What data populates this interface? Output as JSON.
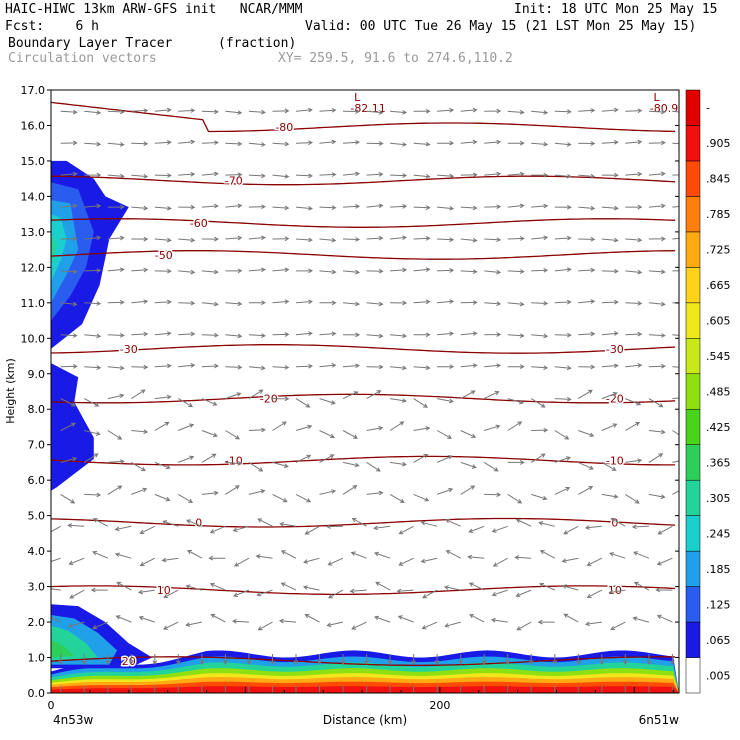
{
  "header": {
    "line1_left": "HAIC-HIWC 13km ARW-GFS init   NCAR/MMM",
    "line1_right": "Init: 18 UTC Mon 25 May 15",
    "line2_left": "Fcst:    6 h",
    "line2_right": "Valid: 00 UTC Tue 26 May 15 (21 LST Mon 25 May 15)",
    "field_name": "Boundary Layer Tracer",
    "field_units": "(fraction)",
    "vector_name": "Circulation vectors",
    "xy_range": "XY= 259.5, 91.6 to 274.6,110.2"
  },
  "colors": {
    "contour": "#8b0000",
    "vector": "#777777",
    "shading_scale": [
      "#ffffff",
      "#1a1ae6",
      "#2a5cf0",
      "#1fa0e8",
      "#1ccfcf",
      "#22d49a",
      "#2dcf5a",
      "#49d41c",
      "#8ee010",
      "#c8e81a",
      "#f0e81c",
      "#ffd21a",
      "#ffaa12",
      "#ff7e0c",
      "#ff4a08",
      "#f01010",
      "#e00000"
    ]
  },
  "chart_data": {
    "type": "heatmap",
    "title": "Boundary Layer Tracer",
    "units": "(fraction)",
    "xlabel": "Distance (km)",
    "ylabel": "Height (km)",
    "xlim": [
      0,
      323
    ],
    "ylim": [
      0,
      17
    ],
    "x_ticks": [
      {
        "value": 0,
        "label": "0"
      },
      {
        "value": 200,
        "label": "200"
      }
    ],
    "x_endpoints": {
      "left": "4n53w",
      "right": "6n51w"
    },
    "y_ticks": [
      "0.0",
      "1.0",
      "2.0",
      "3.0",
      "4.0",
      "5.0",
      "6.0",
      "7.0",
      "8.0",
      "9.0",
      "10.0",
      "11.0",
      "12.0",
      "13.0",
      "14.0",
      "15.0",
      "16.0",
      "17.0"
    ],
    "colorbar": {
      "levels": [
        0.005,
        0.065,
        0.125,
        0.185,
        0.245,
        0.305,
        0.365,
        0.425,
        0.485,
        0.545,
        0.605,
        0.665,
        0.725,
        0.785,
        0.845,
        0.905,
        1.0
      ],
      "labels": [
        ".005",
        ".065",
        ".125",
        ".185",
        ".245",
        ".305",
        ".365",
        ".425",
        ".485",
        ".545",
        ".605",
        ".665",
        ".725",
        ".785",
        ".845",
        ".905",
        "-"
      ]
    },
    "contour_lines": [
      {
        "label": "20",
        "height": 0.9
      },
      {
        "label": "10",
        "height": 2.9
      },
      {
        "label": "0",
        "height": 4.8
      },
      {
        "label": "-10",
        "height": 6.55
      },
      {
        "label": "-20",
        "height": 8.3
      },
      {
        "label": "-30",
        "height": 9.7
      },
      {
        "label": "-50",
        "height": 12.35
      },
      {
        "label": "-60",
        "height": 13.25
      },
      {
        "label": "-70",
        "height": 14.45
      },
      {
        "label": "-80",
        "height": 15.95
      }
    ],
    "extrema": [
      {
        "marker": "L",
        "value": "-82.11",
        "x": 160
      },
      {
        "marker": "L",
        "value": "-80.95",
        "x": 314
      }
    ]
  }
}
